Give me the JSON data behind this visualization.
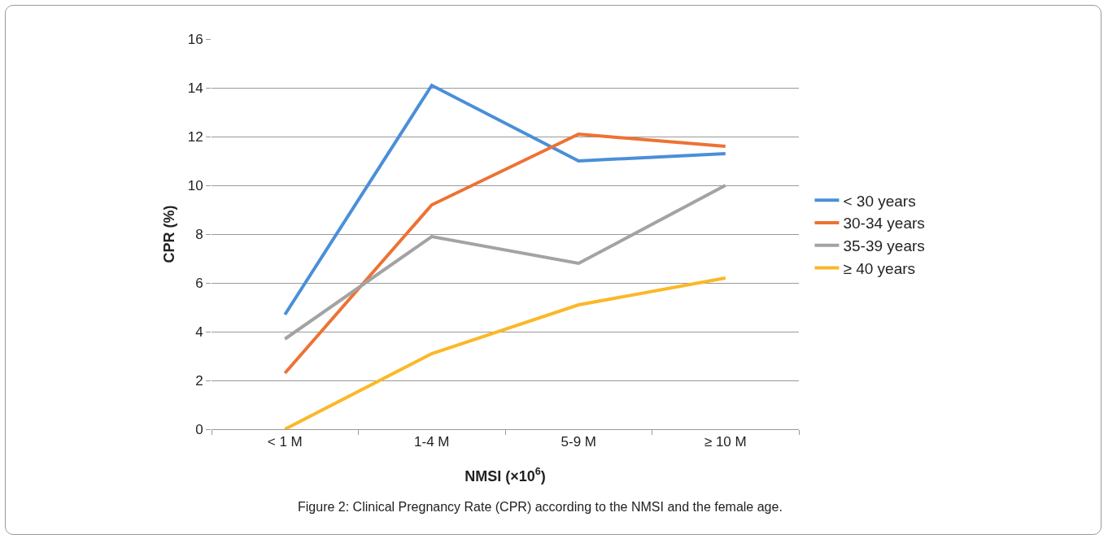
{
  "chart_data": {
    "type": "line",
    "xlabel": "NMSI (×10$^{6}$)",
    "ylabel": "CPR (%)",
    "categories": [
      "< 1 M",
      "1-4 M",
      "5-9 M",
      "≥ 10 M"
    ],
    "series": [
      {
        "name": "< 30 years",
        "color": "#4a8fd8",
        "values": [
          4.7,
          14.1,
          11.0,
          11.3
        ]
      },
      {
        "name": "30-34 years",
        "color": "#ed7233",
        "values": [
          2.3,
          9.2,
          12.1,
          11.6
        ]
      },
      {
        "name": "35-39 years",
        "color": "#a3a3a3",
        "values": [
          3.7,
          7.9,
          6.8,
          10.0
        ]
      },
      {
        "name": "≥ 40 years",
        "color": "#fbb827",
        "values": [
          0,
          3.1,
          5.1,
          6.2
        ]
      }
    ],
    "ylim": [
      0,
      16
    ],
    "yticks": [
      0,
      2,
      4,
      6,
      8,
      10,
      12,
      14,
      16
    ],
    "grid": "y",
    "legend": "right",
    "marker": "none",
    "line_style": "solid",
    "annotations": [
      "Figure 2: Clinical Pregnancy Rate (CPR) according to the NMSI and the female age."
    ]
  }
}
